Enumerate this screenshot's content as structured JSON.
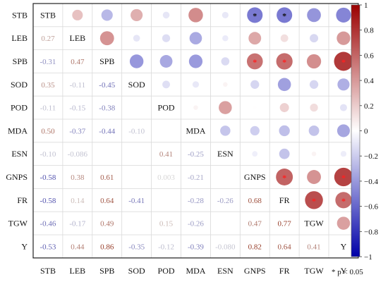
{
  "chart_data": {
    "type": "heatmap",
    "variables": [
      "STB",
      "LEB",
      "SPB",
      "SOD",
      "POD",
      "MDA",
      "ESN",
      "GNPS",
      "FR",
      "TGW",
      "Y"
    ],
    "matrix": [
      [
        1,
        0.27,
        -0.31,
        0.35,
        -0.11,
        0.5,
        -0.1,
        -0.58,
        -0.58,
        -0.46,
        -0.53
      ],
      [
        0.27,
        1,
        0.47,
        -0.11,
        -0.15,
        -0.37,
        -0.086,
        0.38,
        0.14,
        -0.17,
        0.44
      ],
      [
        -0.31,
        0.47,
        1,
        -0.45,
        -0.38,
        -0.44,
        -0.16,
        0.61,
        0.64,
        0.49,
        0.86
      ],
      [
        0.35,
        -0.11,
        -0.45,
        1,
        -0.14,
        -0.1,
        0.05,
        -0.18,
        -0.41,
        -0.18,
        -0.35
      ],
      [
        -0.11,
        -0.15,
        -0.38,
        -0.14,
        1,
        0.05,
        0.41,
        0.003,
        0.2,
        0.15,
        -0.12
      ],
      [
        0.5,
        -0.37,
        -0.44,
        -0.1,
        0.05,
        1,
        -0.25,
        -0.21,
        -0.28,
        -0.26,
        -0.39
      ],
      [
        -0.1,
        -0.086,
        -0.16,
        0.05,
        0.41,
        -0.25,
        1,
        -0.072,
        -0.26,
        0.05,
        -0.08
      ],
      [
        -0.58,
        0.38,
        0.61,
        -0.18,
        0.003,
        -0.21,
        -0.072,
        1,
        0.68,
        0.47,
        0.82
      ],
      [
        -0.58,
        0.14,
        0.64,
        -0.41,
        0.2,
        -0.28,
        -0.26,
        0.68,
        1,
        0.77,
        0.64
      ],
      [
        -0.46,
        -0.17,
        0.49,
        -0.18,
        0.15,
        -0.26,
        0.05,
        0.47,
        0.77,
        1,
        0.41
      ],
      [
        -0.53,
        0.44,
        0.86,
        -0.35,
        -0.12,
        -0.39,
        -0.08,
        0.82,
        0.64,
        0.41,
        1
      ]
    ],
    "lower_labels": [
      [
        "0.27"
      ],
      [
        "-0.31",
        "0.47"
      ],
      [
        "0.35",
        "-0.11",
        "-0.45"
      ],
      [
        "-0.11",
        "-0.15",
        "-0.38",
        ""
      ],
      [
        "0.50",
        "-0.37",
        "-0.44",
        "-0.10",
        ""
      ],
      [
        "-0.10",
        "-0.086",
        "",
        "",
        "0.41",
        "-0.25"
      ],
      [
        "-0.58",
        "0.38",
        "0.61",
        "",
        "0.003",
        "-0.21",
        ""
      ],
      [
        "-0.58",
        "0.14",
        "0.64",
        "-0.41",
        "",
        "-0.28",
        "-0.26",
        "0.68"
      ],
      [
        "-0.46",
        "-0.17",
        "0.49",
        "",
        "0.15",
        "-0.26",
        "",
        "0.47",
        "0.77"
      ],
      [
        "-0.53",
        "0.44",
        "0.86",
        "-0.35",
        "-0.12",
        "-0.39",
        "-0.080",
        "0.82",
        "0.64",
        "0.41"
      ]
    ],
    "significant": [
      [
        0,
        7
      ],
      [
        0,
        8
      ],
      [
        2,
        7
      ],
      [
        2,
        8
      ],
      [
        2,
        10
      ],
      [
        7,
        8
      ],
      [
        7,
        10
      ],
      [
        8,
        9
      ],
      [
        8,
        10
      ]
    ],
    "colorbar": {
      "range": [
        -1,
        1
      ],
      "ticks": [
        "1",
        "0.8",
        "0.6",
        "0.4",
        "0.2",
        "0",
        "−0.2",
        "−0.4",
        "−0.6",
        "−0.8",
        "−1"
      ],
      "colors": {
        "high": "#9b0000",
        "mid": "#ffffff",
        "low": "#0000a8"
      }
    },
    "note": "* p < 0.05",
    "grid": true
  }
}
